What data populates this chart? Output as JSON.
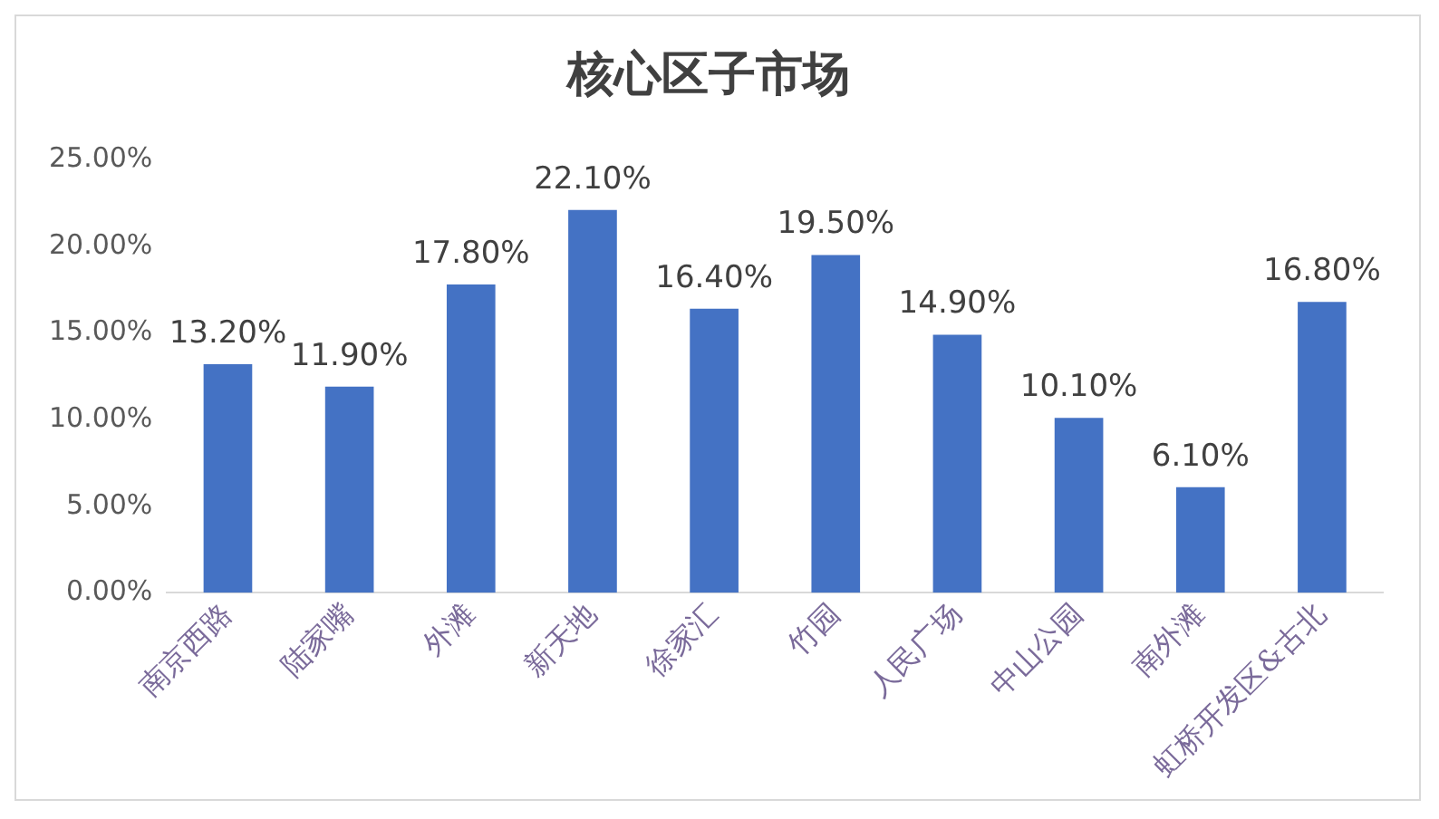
{
  "chart_data": {
    "type": "bar",
    "title": "核心区子市场",
    "categories": [
      "南京西路",
      "陆家嘴",
      "外滩",
      "新天地",
      "徐家汇",
      "竹园",
      "人民广场",
      "中山公园",
      "南外滩",
      "虹桥开发区&古北"
    ],
    "values": [
      13.2,
      11.9,
      17.8,
      22.1,
      16.4,
      19.5,
      14.9,
      10.1,
      6.1,
      16.8
    ],
    "value_labels": [
      "13.20%",
      "11.90%",
      "17.80%",
      "22.10%",
      "16.40%",
      "19.50%",
      "14.90%",
      "10.10%",
      "6.10%",
      "16.80%"
    ],
    "color": "#4472c4",
    "ylim": [
      0,
      25
    ],
    "yticks": [
      {
        "value": 0,
        "label": "0.00%"
      },
      {
        "value": 5,
        "label": "5.00%"
      },
      {
        "value": 10,
        "label": "10.00%"
      },
      {
        "value": 15,
        "label": "15.00%"
      },
      {
        "value": 20,
        "label": "20.00%"
      },
      {
        "value": 25,
        "label": "25.00%"
      }
    ],
    "grid": false,
    "legend": false
  }
}
